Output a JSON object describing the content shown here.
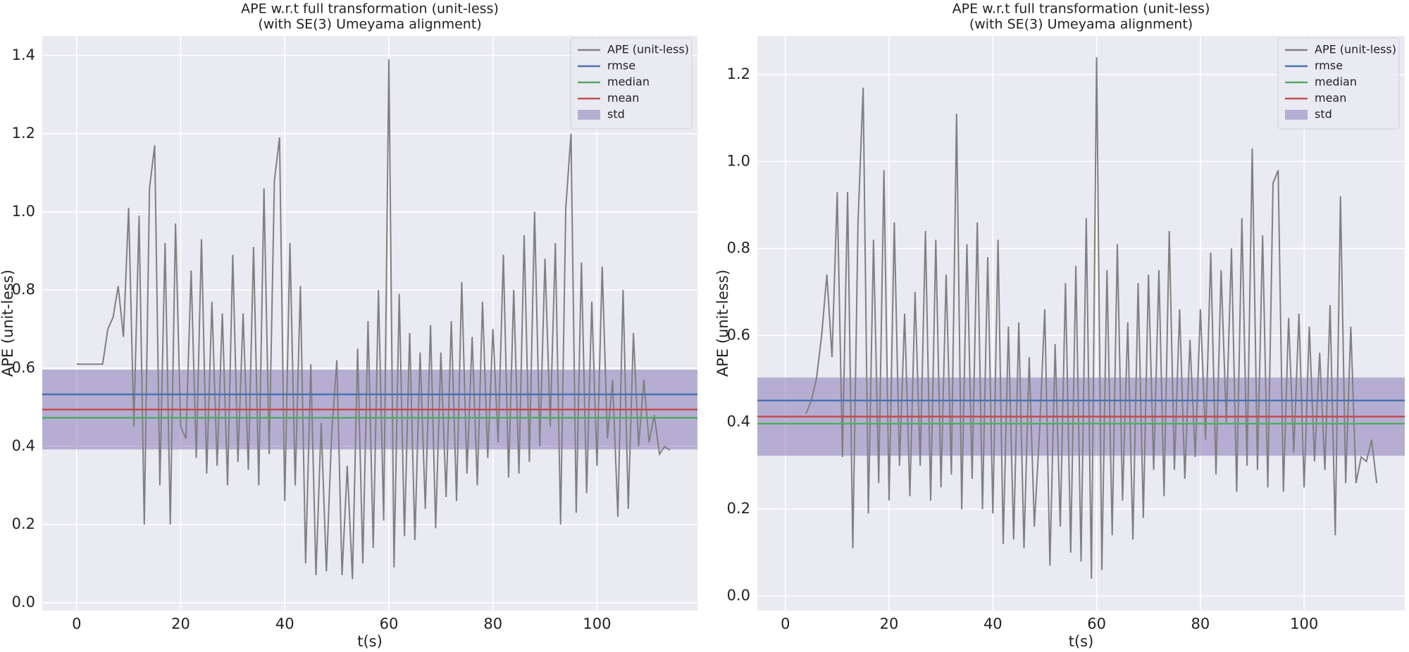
{
  "chart_data": [
    {
      "type": "line",
      "title": "APE w.r.t full transformation (unit-less)",
      "subtitle": "(with SE(3) Umeyama alignment)",
      "xlabel": "t(s)",
      "ylabel": "APE (unit-less)",
      "xlim": [
        -6.6,
        119.3
      ],
      "ylim": [
        -0.02,
        1.45
      ],
      "xticks": [
        0,
        20,
        40,
        60,
        80,
        100
      ],
      "yticks": [
        {
          "value": 0,
          "label": "0.0"
        },
        0.2,
        0.4,
        0.6,
        0.8,
        {
          "value": 1,
          "label": "1.0"
        },
        1.2,
        1.4
      ],
      "grid": true,
      "legend": "upper right",
      "series": [
        {
          "name": "APE (unit-less)",
          "color": "#808080",
          "x": [
            0,
            4,
            5,
            6,
            7,
            8,
            9,
            10,
            11,
            12,
            13,
            14,
            15,
            16,
            17,
            18,
            19,
            20,
            21,
            22,
            23,
            24,
            25,
            26,
            27,
            28,
            29,
            30,
            31,
            32,
            33,
            34,
            35,
            36,
            37,
            38,
            39,
            40,
            41,
            42,
            43,
            44,
            45,
            46,
            47,
            48,
            49,
            50,
            51,
            52,
            53,
            54,
            55,
            56,
            57,
            58,
            59,
            60,
            61,
            62,
            63,
            64,
            65,
            66,
            67,
            68,
            69,
            70,
            71,
            72,
            73,
            74,
            75,
            76,
            77,
            78,
            79,
            80,
            81,
            82,
            83,
            84,
            85,
            86,
            87,
            88,
            89,
            90,
            91,
            92,
            93,
            94,
            95,
            96,
            97,
            98,
            99,
            100,
            101,
            102,
            103,
            104,
            105,
            106,
            107,
            108,
            109,
            110,
            111,
            112,
            113,
            114
          ],
          "values": [
            0.61,
            0.61,
            0.61,
            0.7,
            0.73,
            0.81,
            0.68,
            1.01,
            0.45,
            0.99,
            0.2,
            1.06,
            1.17,
            0.3,
            0.92,
            0.2,
            0.97,
            0.45,
            0.42,
            0.85,
            0.37,
            0.93,
            0.33,
            0.77,
            0.35,
            0.74,
            0.3,
            0.89,
            0.36,
            0.74,
            0.34,
            0.91,
            0.3,
            1.06,
            0.38,
            1.08,
            1.19,
            0.26,
            0.92,
            0.3,
            0.81,
            0.1,
            0.61,
            0.07,
            0.46,
            0.08,
            0.43,
            0.62,
            0.07,
            0.35,
            0.06,
            0.65,
            0.1,
            0.72,
            0.14,
            0.8,
            0.21,
            1.39,
            0.09,
            0.79,
            0.17,
            0.69,
            0.16,
            0.64,
            0.24,
            0.71,
            0.19,
            0.64,
            0.27,
            0.72,
            0.26,
            0.82,
            0.33,
            0.68,
            0.3,
            0.77,
            0.37,
            0.7,
            0.41,
            0.89,
            0.32,
            0.8,
            0.33,
            0.94,
            0.36,
            1.0,
            0.4,
            0.88,
            0.45,
            0.92,
            0.2,
            1.01,
            1.2,
            0.23,
            0.87,
            0.28,
            0.77,
            0.35,
            0.86,
            0.42,
            0.57,
            0.22,
            0.8,
            0.24,
            0.69,
            0.4,
            0.57,
            0.41,
            0.48,
            0.38,
            0.4,
            0.39
          ]
        }
      ],
      "stats": [
        {
          "name": "rmse",
          "color": "#4c72b0",
          "value": 0.533
        },
        {
          "name": "median",
          "color": "#55a868",
          "value": 0.473
        },
        {
          "name": "mean",
          "color": "#c44e52",
          "value": 0.494
        }
      ],
      "std": {
        "name": "std",
        "color": "#8172b2",
        "value": 0.102
      }
    },
    {
      "type": "line",
      "title": "APE w.r.t full transformation (unit-less)",
      "subtitle": "(with SE(3) Umeyama alignment)",
      "xlabel": "t(s)",
      "ylabel": "APE (unit-less)",
      "xlim": [
        -5.4,
        119.4
      ],
      "ylim": [
        -0.033,
        1.289
      ],
      "xticks": [
        0,
        20,
        40,
        60,
        80,
        100
      ],
      "yticks": [
        {
          "value": 0,
          "label": "0.0"
        },
        0.2,
        0.4,
        0.6,
        0.8,
        {
          "value": 1,
          "label": "1.0"
        },
        1.2
      ],
      "grid": true,
      "legend": "upper right",
      "series": [
        {
          "name": "APE (unit-less)",
          "color": "#808080",
          "x": [
            4,
            5,
            6,
            7,
            8,
            9,
            10,
            11,
            12,
            13,
            14,
            15,
            16,
            17,
            18,
            19,
            20,
            21,
            22,
            23,
            24,
            25,
            26,
            27,
            28,
            29,
            30,
            31,
            32,
            33,
            34,
            35,
            36,
            37,
            38,
            39,
            40,
            41,
            42,
            43,
            44,
            45,
            46,
            47,
            48,
            49,
            50,
            51,
            52,
            53,
            54,
            55,
            56,
            57,
            58,
            59,
            60,
            61,
            62,
            63,
            64,
            65,
            66,
            67,
            68,
            69,
            70,
            71,
            72,
            73,
            74,
            75,
            76,
            77,
            78,
            79,
            80,
            81,
            82,
            83,
            84,
            85,
            86,
            87,
            88,
            89,
            90,
            91,
            92,
            93,
            94,
            95,
            96,
            97,
            98,
            99,
            100,
            101,
            102,
            103,
            104,
            105,
            106,
            107,
            108,
            109,
            110,
            111,
            112,
            113,
            114
          ],
          "values": [
            0.42,
            0.45,
            0.5,
            0.6,
            0.74,
            0.55,
            0.93,
            0.32,
            0.93,
            0.11,
            0.86,
            1.17,
            0.19,
            0.82,
            0.26,
            0.98,
            0.22,
            0.86,
            0.3,
            0.65,
            0.23,
            0.7,
            0.3,
            0.84,
            0.22,
            0.82,
            0.25,
            0.74,
            0.28,
            1.11,
            0.2,
            0.81,
            0.27,
            0.86,
            0.2,
            0.78,
            0.19,
            0.82,
            0.12,
            0.62,
            0.13,
            0.63,
            0.11,
            0.55,
            0.16,
            0.38,
            0.66,
            0.07,
            0.58,
            0.16,
            0.72,
            0.1,
            0.76,
            0.08,
            0.87,
            0.04,
            1.24,
            0.06,
            0.75,
            0.14,
            0.81,
            0.22,
            0.63,
            0.13,
            0.72,
            0.18,
            0.74,
            0.29,
            0.75,
            0.23,
            0.84,
            0.29,
            0.66,
            0.27,
            0.59,
            0.32,
            0.66,
            0.36,
            0.79,
            0.28,
            0.75,
            0.4,
            0.8,
            0.24,
            0.87,
            0.3,
            1.03,
            0.29,
            0.83,
            0.25,
            0.95,
            0.98,
            0.24,
            0.64,
            0.33,
            0.65,
            0.25,
            0.62,
            0.31,
            0.56,
            0.29,
            0.67,
            0.14,
            0.92,
            0.26,
            0.62,
            0.26,
            0.32,
            0.31,
            0.36,
            0.26
          ]
        }
      ],
      "stats": [
        {
          "name": "rmse",
          "color": "#4c72b0",
          "value": 0.45
        },
        {
          "name": "median",
          "color": "#55a868",
          "value": 0.397
        },
        {
          "name": "mean",
          "color": "#c44e52",
          "value": 0.413
        }
      ],
      "std": {
        "name": "std",
        "color": "#8172b2",
        "value": 0.09
      }
    }
  ]
}
